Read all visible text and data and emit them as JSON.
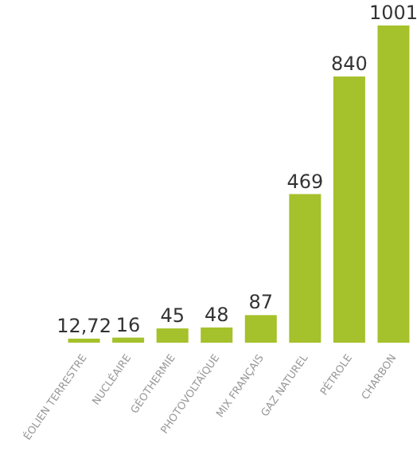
{
  "chart_data": {
    "type": "bar",
    "categories": [
      "ÉOLIEN TERRESTRE",
      "NUCLÉAIRE",
      "GÉOTHERMIE",
      "PHOTOVOLTAÏQUE",
      "MIX FRANÇAIS",
      "GAZ NATUREL",
      "PÉTROLE",
      "CHARBON"
    ],
    "values": [
      12.72,
      16,
      45,
      48,
      87,
      469,
      840,
      1001
    ],
    "value_labels": [
      "12,72",
      "16",
      "45",
      "48",
      "87",
      "469",
      "840",
      "1001"
    ],
    "color": "#a5c12b"
  }
}
